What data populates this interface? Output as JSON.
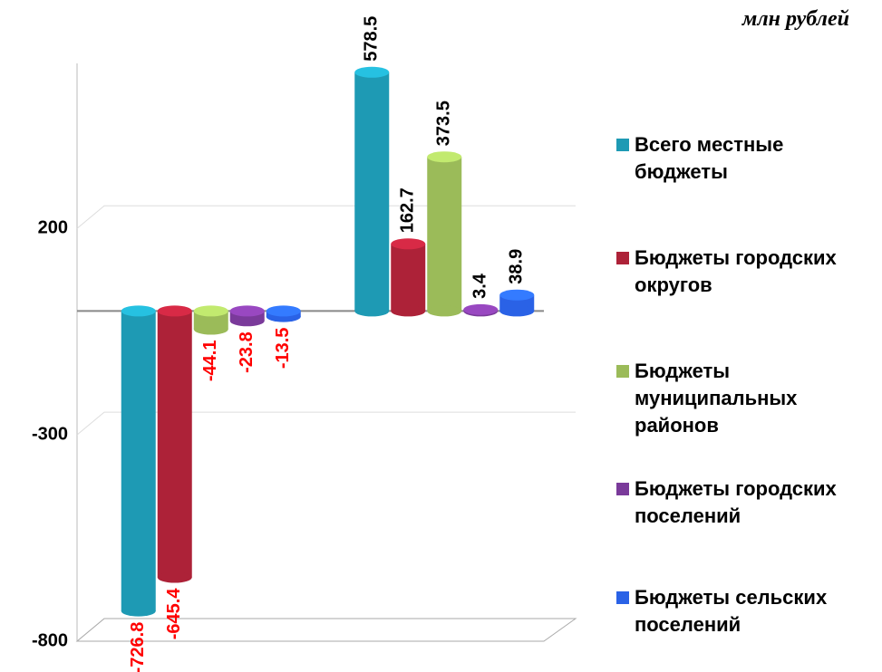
{
  "chart_data": {
    "type": "bar",
    "unit_label": "млн рублей",
    "categories": [
      null,
      null
    ],
    "series": [
      {
        "name": "Всего местные бюджеты",
        "color": "#1e9ab4",
        "values": [
          -726.8,
          578.5
        ]
      },
      {
        "name": "Бюджеты городских округов",
        "color": "#ad2238",
        "values": [
          -645.4,
          162.7
        ]
      },
      {
        "name": "Бюджеты муниципальных районов",
        "color": "#9bbb59",
        "values": [
          -44.1,
          373.5
        ]
      },
      {
        "name": "Бюджеты городских поселений",
        "color": "#7a3a9a",
        "values": [
          -23.8,
          3.4
        ]
      },
      {
        "name": "Бюджеты сельских поселений",
        "color": "#2a62e6",
        "values": [
          -13.5,
          38.9
        ]
      }
    ],
    "ylim": [
      -800,
      600
    ],
    "yticks": [
      -800,
      -300,
      200
    ],
    "grid": true
  }
}
